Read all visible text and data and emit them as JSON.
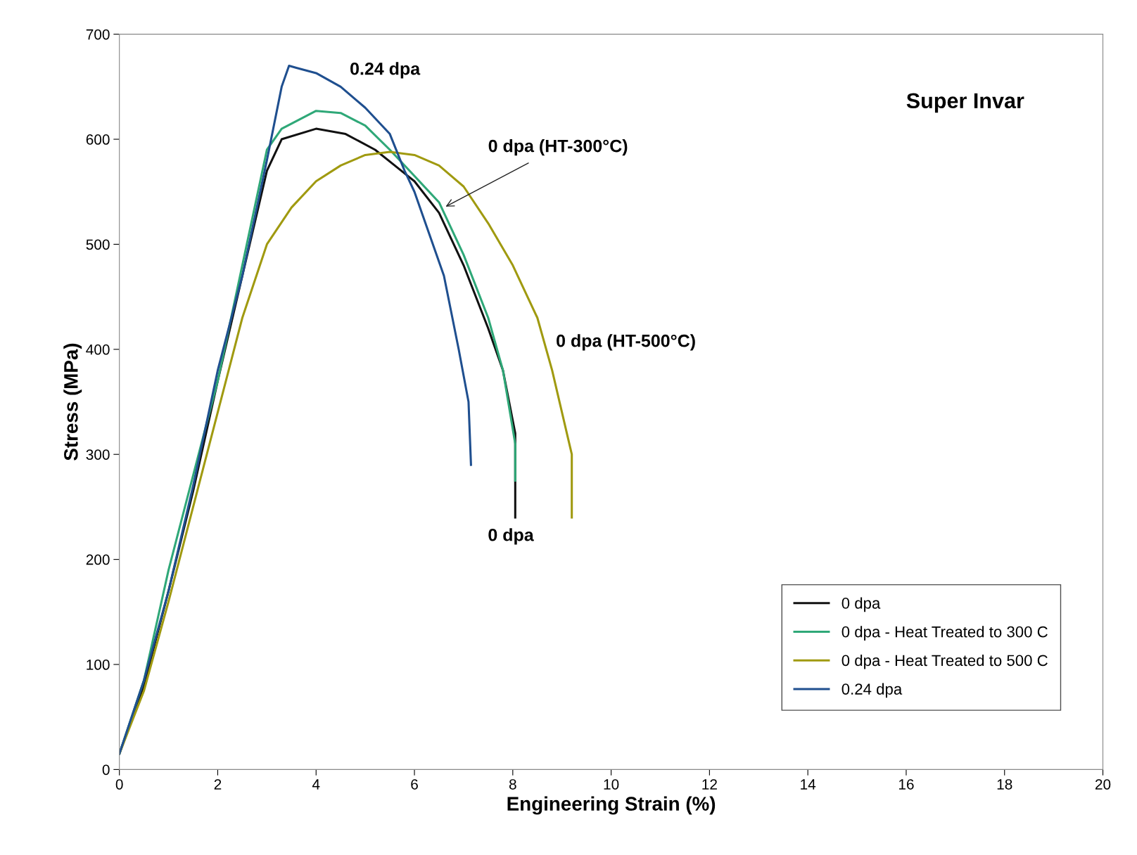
{
  "chart_data": {
    "type": "line",
    "xlabel": "Engineering Strain (%)",
    "ylabel": "Stress (MPa)",
    "xlim": [
      0,
      20
    ],
    "xticks": [
      0,
      2,
      4,
      6,
      8,
      10,
      12,
      14,
      16,
      18,
      20
    ],
    "ylim": [
      0,
      700
    ],
    "yticks": [
      0,
      100,
      200,
      300,
      400,
      500,
      600,
      700
    ],
    "grid": false,
    "legend": "bottom right",
    "marker": "none",
    "line_style": "solid",
    "series": [
      {
        "name": "0 dpa",
        "color": "#111111",
        "x": [
          0,
          0.5,
          1,
          1.5,
          2,
          2.5,
          3,
          3.3,
          4,
          4.6,
          5.2,
          5.6,
          6,
          6.5,
          7,
          7.5,
          7.8,
          8.05,
          8.05
        ],
        "values": [
          15,
          80,
          170,
          265,
          370,
          470,
          570,
          600,
          610,
          605,
          590,
          575,
          560,
          530,
          480,
          420,
          380,
          320,
          240
        ]
      },
      {
        "name": "0 dpa - Heat Treated to 300 C",
        "color": "#2fa878",
        "x": [
          0,
          0.5,
          1,
          1.5,
          2,
          2.5,
          3,
          3.3,
          4,
          4.5,
          5,
          5.5,
          6,
          6.5,
          7,
          7.5,
          7.8,
          8.05,
          8.05
        ],
        "values": [
          15,
          85,
          190,
          280,
          370,
          480,
          590,
          610,
          627,
          625,
          613,
          590,
          565,
          540,
          490,
          430,
          380,
          310,
          275
        ]
      },
      {
        "name": "0 dpa - Heat Treated to 500 C",
        "color": "#a09a10",
        "x": [
          0,
          0.5,
          1,
          1.5,
          2,
          2.5,
          3,
          3.5,
          4,
          4.5,
          5,
          5.5,
          6,
          6.5,
          7,
          7.5,
          8,
          8.5,
          8.8,
          9.1,
          9.2,
          9.2
        ],
        "values": [
          15,
          75,
          160,
          250,
          340,
          430,
          500,
          535,
          560,
          575,
          585,
          588,
          585,
          575,
          555,
          520,
          480,
          430,
          380,
          320,
          300,
          240
        ]
      },
      {
        "name": "0.24 dpa",
        "color": "#1f4f8f",
        "x": [
          0,
          0.5,
          1,
          1.5,
          2,
          2.5,
          3,
          3.3,
          3.45,
          3.6,
          4,
          4.5,
          5,
          5.5,
          5.8,
          6,
          6.3,
          6.6,
          6.9,
          7.1,
          7.15
        ],
        "values": [
          15,
          85,
          170,
          270,
          380,
          470,
          580,
          650,
          670,
          668,
          663,
          650,
          630,
          605,
          570,
          550,
          510,
          470,
          400,
          350,
          290
        ]
      }
    ],
    "annotations": [
      "Super Invar",
      "0.24 dpa",
      {
        "text": "0 dpa (HT-300°C)",
        "x": 6.6,
        "y": 535
      },
      "0 dpa (HT-500°C)",
      "0 dpa"
    ]
  }
}
